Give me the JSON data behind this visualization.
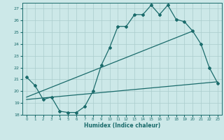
{
  "bg_color": "#cce8e8",
  "grid_color": "#aacccc",
  "line_color": "#1a6b6b",
  "xlabel": "Humidex (Indice chaleur)",
  "ylim": [
    18,
    27.5
  ],
  "xlim": [
    -0.5,
    23.5
  ],
  "yticks": [
    18,
    19,
    20,
    21,
    22,
    23,
    24,
    25,
    26,
    27
  ],
  "xticks": [
    0,
    1,
    2,
    3,
    4,
    5,
    6,
    7,
    8,
    9,
    10,
    11,
    12,
    13,
    14,
    15,
    16,
    17,
    18,
    19,
    20,
    21,
    22,
    23
  ],
  "curve1_x": [
    0,
    1,
    2,
    3,
    4,
    5,
    6,
    7,
    8,
    9,
    10,
    11,
    12,
    13,
    14,
    15,
    16,
    17,
    18,
    19,
    20,
    21,
    22,
    23
  ],
  "curve1_y": [
    21.2,
    20.5,
    19.3,
    19.5,
    18.3,
    18.2,
    18.2,
    18.7,
    20.0,
    22.2,
    23.7,
    25.5,
    25.5,
    26.5,
    26.5,
    27.3,
    26.5,
    27.3,
    26.1,
    25.9,
    25.1,
    24.0,
    22.0,
    20.7
  ],
  "curve2_x": [
    0,
    23
  ],
  "curve2_y": [
    19.3,
    20.8
  ],
  "curve3_x": [
    0,
    20
  ],
  "curve3_y": [
    19.5,
    25.1
  ]
}
